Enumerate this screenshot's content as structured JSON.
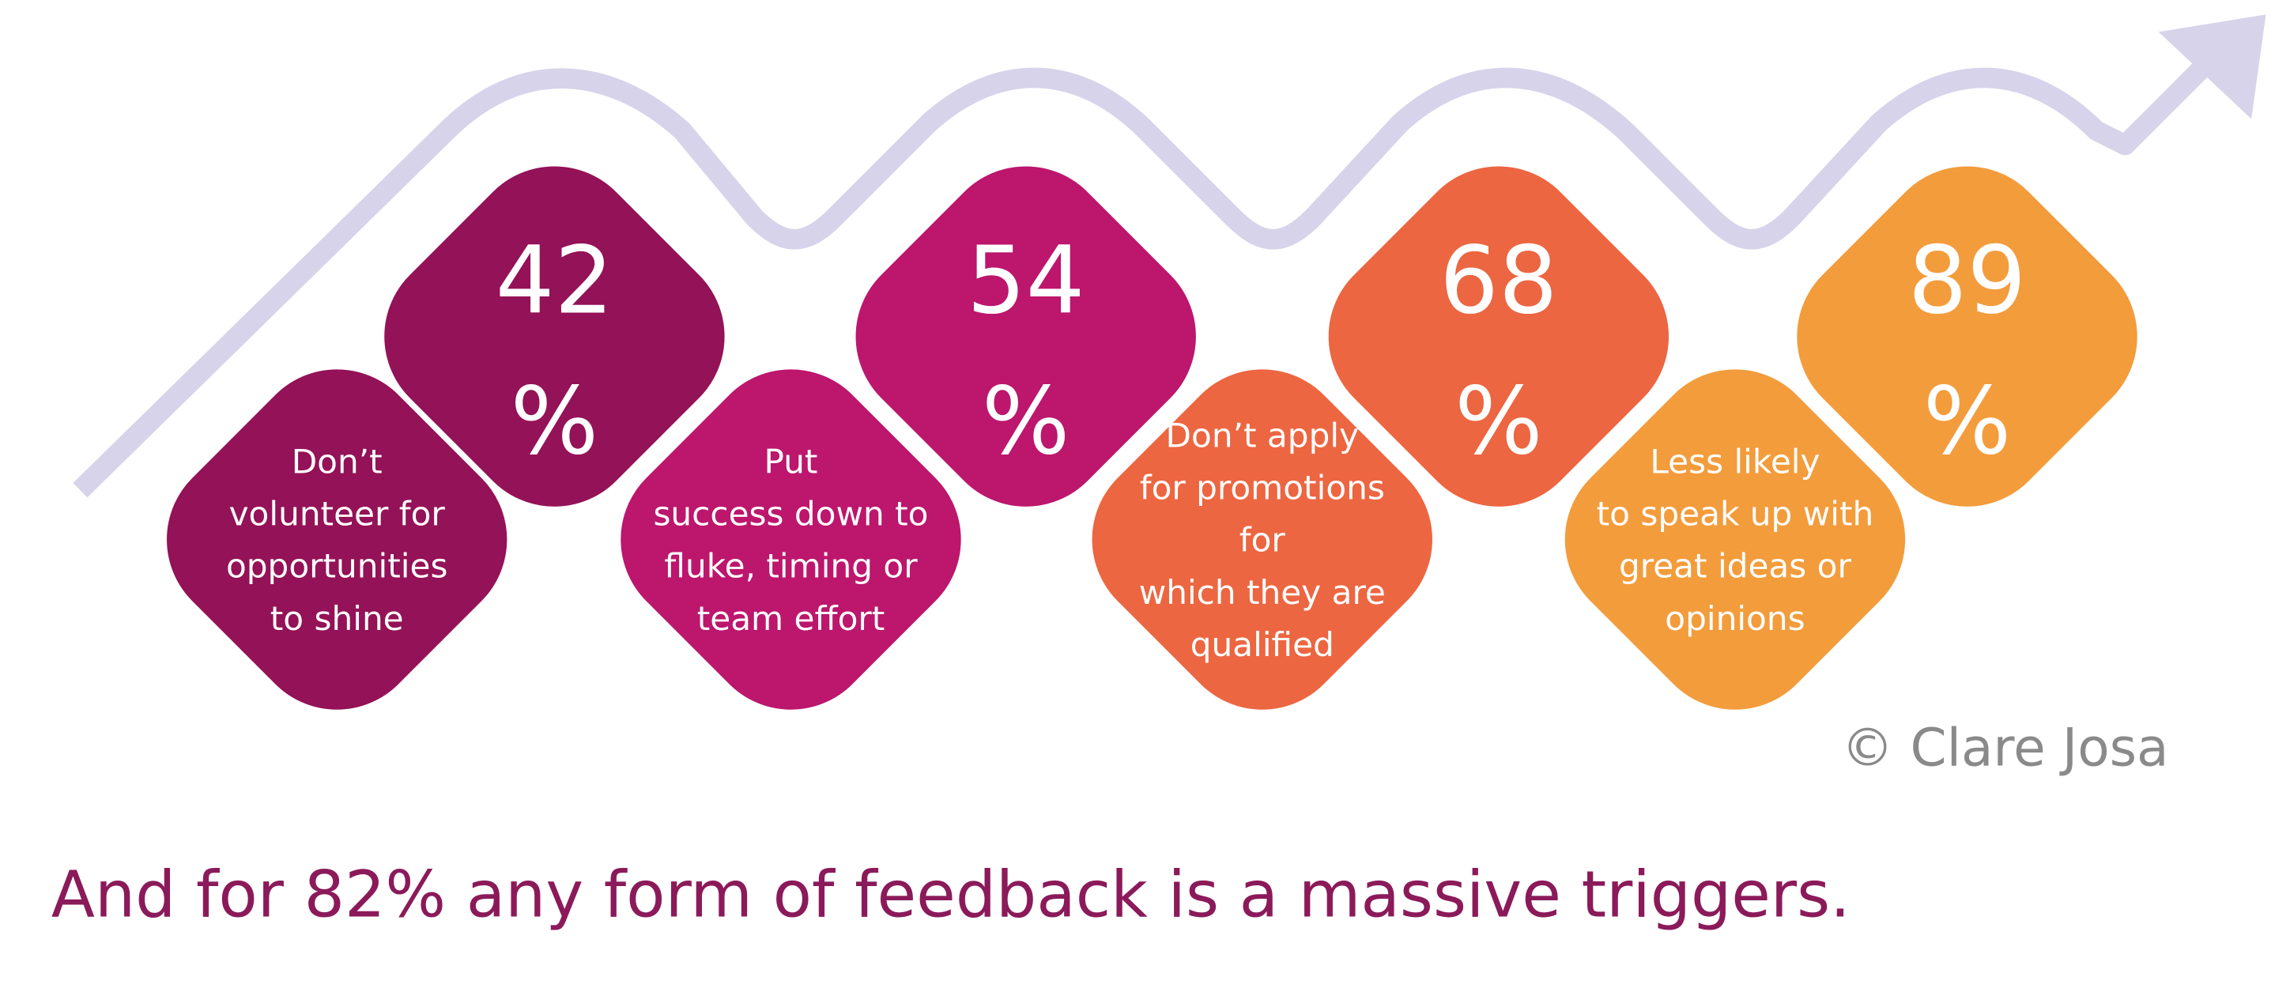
{
  "items": [
    {
      "number": "42",
      "unit": "%",
      "lines": [
        "Don’t",
        "volunteer for",
        "opportunities",
        "to shine"
      ]
    },
    {
      "number": "54",
      "unit": "%",
      "lines": [
        "Put",
        "success down to",
        "fluke, timing or",
        "team effort"
      ]
    },
    {
      "number": "68",
      "unit": "%",
      "lines": [
        "Don’t apply",
        "for promotions",
        "for",
        "which they are",
        "qualified"
      ]
    },
    {
      "number": "89",
      "unit": "%",
      "lines": [
        "Less likely",
        "to speak up with",
        "great ideas or",
        "opinions"
      ]
    }
  ],
  "copyright": "© Clare Josa",
  "footer": "And for 82% any form of feedback is a massive triggers."
}
